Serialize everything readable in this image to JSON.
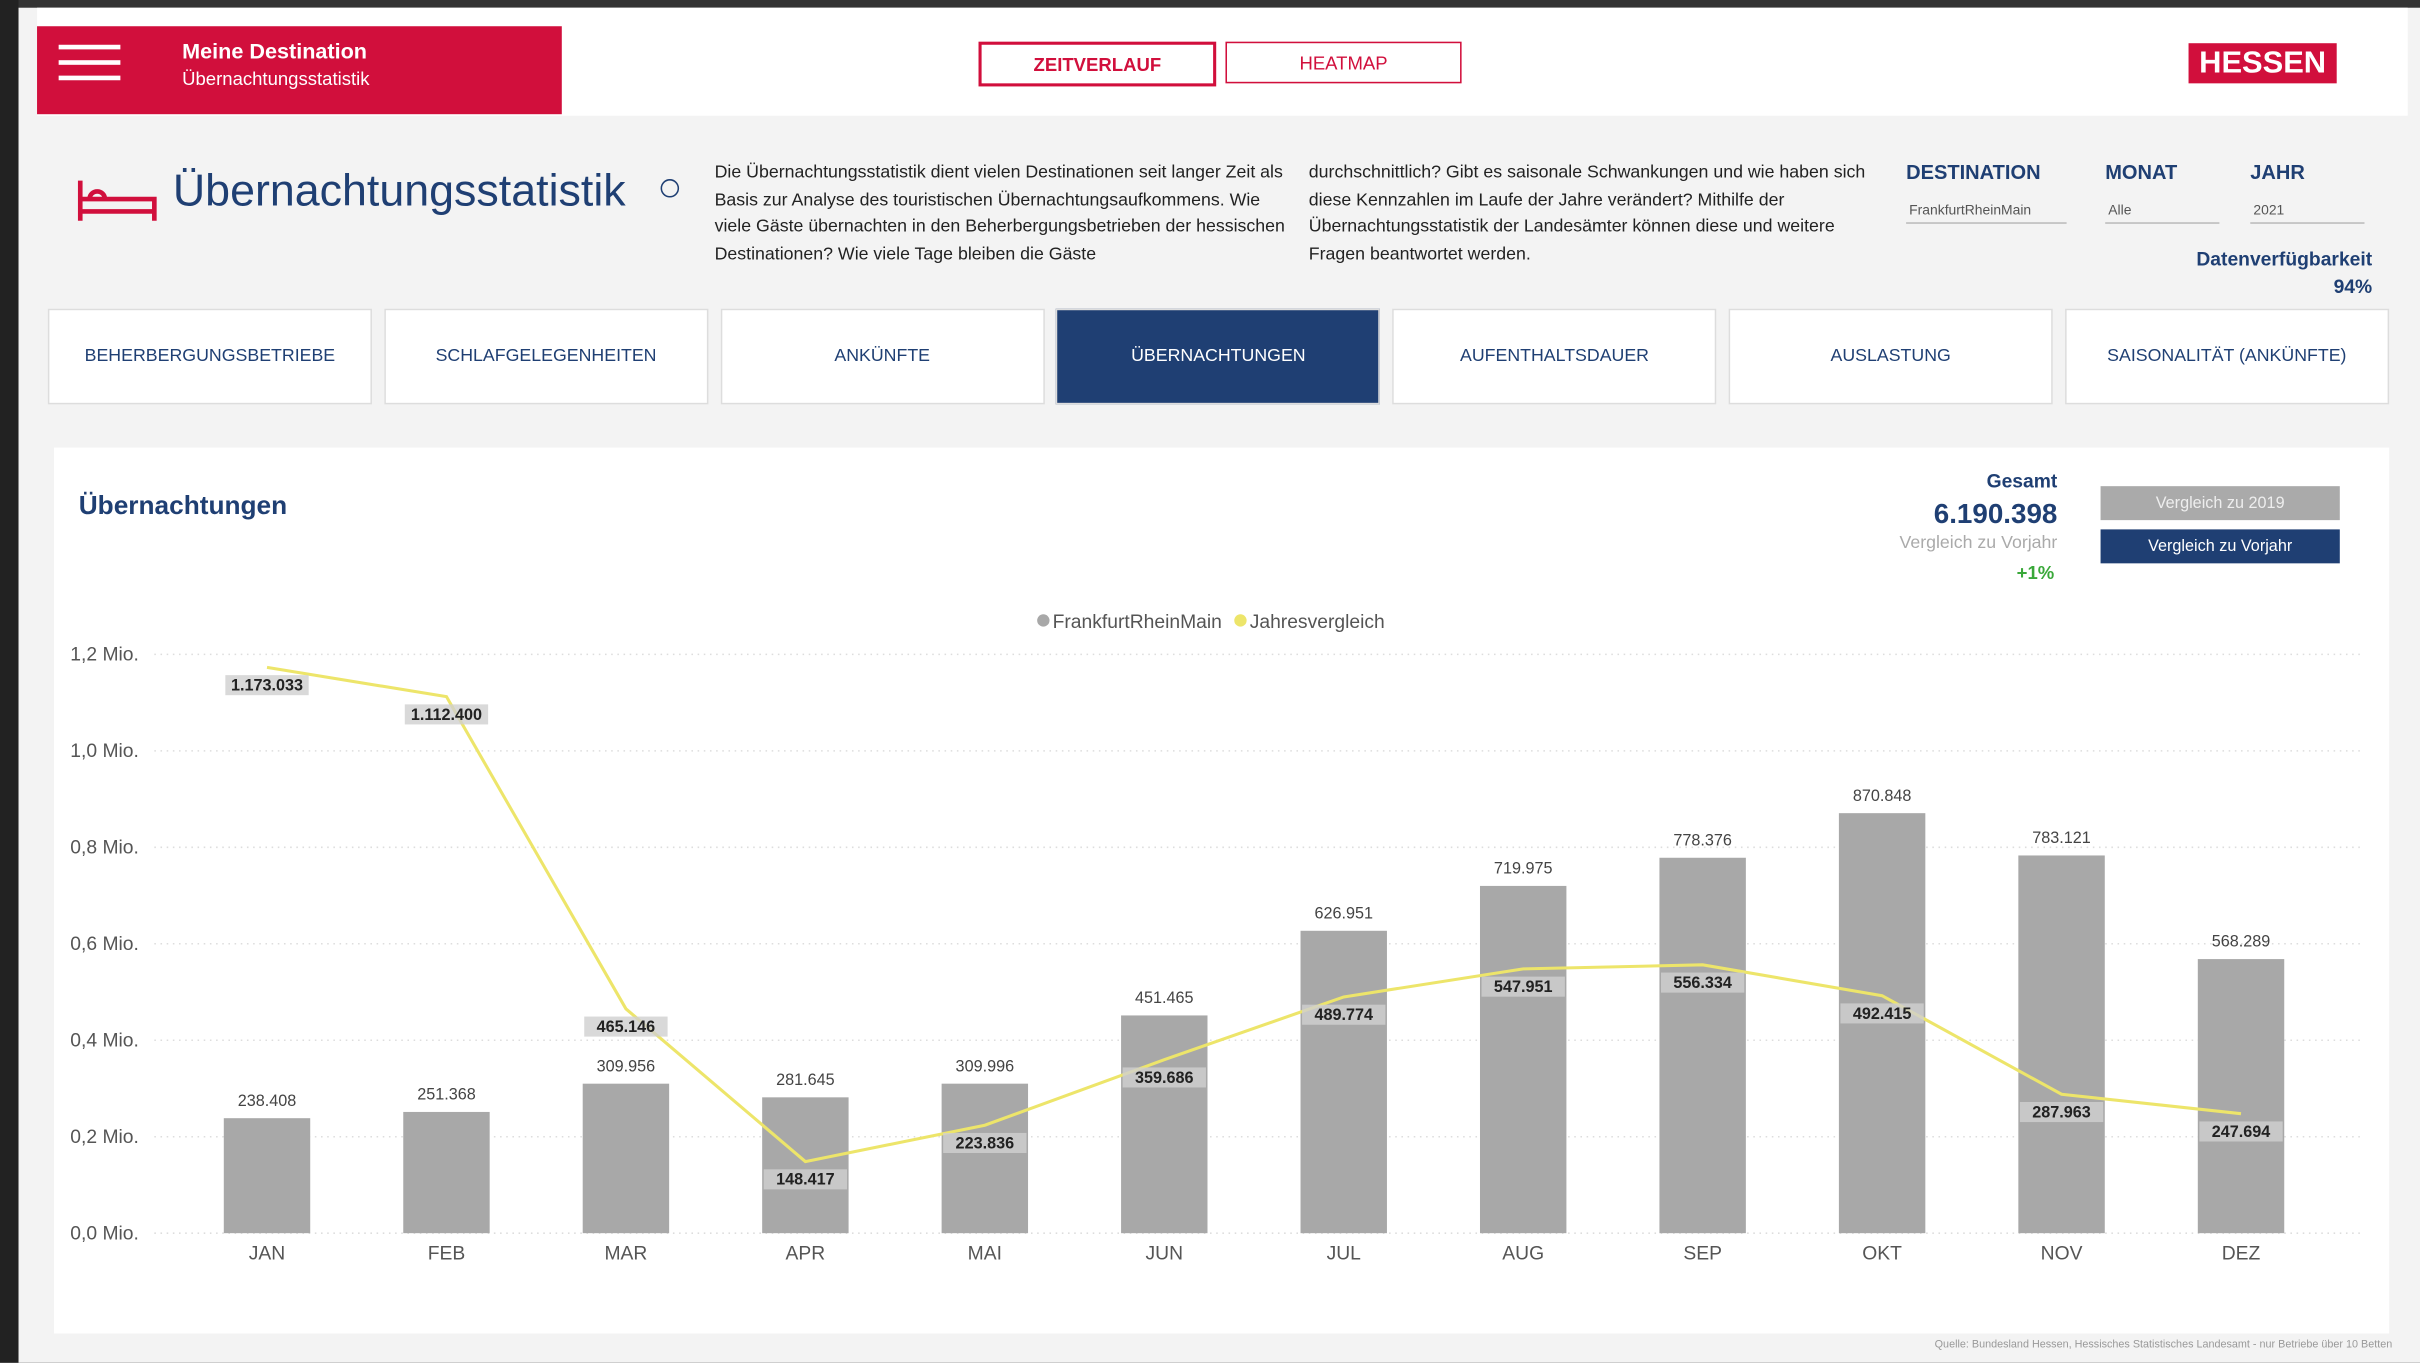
{
  "header": {
    "title": "Meine Destination",
    "subtitle": "Übernachtungsstatistik",
    "buttons": [
      "ZEITVERLAUF",
      "HEATMAP"
    ],
    "logo": "HESSEN"
  },
  "intro": {
    "title": "Übernachtungsstatistik",
    "paragraphs": [
      "Die Übernachtungsstatistik dient vielen Destinationen seit langer Zeit als Basis zur Analyse des touristischen Übernachtungsaufkommens. Wie viele Gäste übernachten in den Beherbergungsbetrieben der hessischen Destinationen? Wie viele Tage bleiben die Gäste",
      "durchschnittlich? Gibt es saisonale Schwankungen und wie haben sich diese Kennzahlen im Laufe der Jahre verändert? Mithilfe der Übernachtungsstatistik der Landesämter können diese und weitere Fragen beantwortet werden."
    ]
  },
  "filters": [
    {
      "label": "DESTINATION",
      "value": "FrankfurtRheinMain"
    },
    {
      "label": "MONAT",
      "value": "Alle"
    },
    {
      "label": "JAHR",
      "value": "2021"
    }
  ],
  "availability": {
    "label": "Datenverfügbarkeit",
    "value": "94%"
  },
  "tabs": [
    "BEHERBERGUNGSBETRIEBE",
    "SCHLAFGELEGENHEITEN",
    "ANKÜNFTE",
    "ÜBERNACHTUNGEN",
    "AUFENTHALTSDAUER",
    "AUSLASTUNG",
    "SAISONALITÄT (ANKÜNFTE)"
  ],
  "card": {
    "title": "Übernachtungen",
    "total_label": "Gesamt",
    "total": "6.190.398",
    "compare_label": "Vergleich zu Vorjahr",
    "change": "+1%",
    "buttons": [
      "Vergleich zu 2019",
      "Vergleich zu Vorjahr"
    ]
  },
  "source": "Quelle: Bundesland Hessen, Hessisches Statistisches Landesamt - nur Betriebe über 10 Betten",
  "chart_data": {
    "type": "bar",
    "categories": [
      "JAN",
      "FEB",
      "MAR",
      "APR",
      "MAI",
      "JUN",
      "JUL",
      "AUG",
      "SEP",
      "OKT",
      "NOV",
      "DEZ"
    ],
    "series": [
      {
        "name": "FrankfurtRheinMain",
        "type": "bar",
        "color": "#a8a8a8",
        "values": [
          238408,
          251368,
          309956,
          281645,
          309996,
          451465,
          626951,
          719975,
          778376,
          870848,
          783121,
          568289
        ],
        "value_labels": [
          "238.408",
          "251.368",
          "309.956",
          "281.645",
          "309.996",
          "451.465",
          "626.951",
          "719.975",
          "778.376",
          "870.848",
          "783.121",
          "568.289"
        ]
      },
      {
        "name": "Jahresvergleich",
        "type": "line",
        "color": "#ede56a",
        "values": [
          1173033,
          1112400,
          465146,
          148417,
          223836,
          359686,
          489774,
          547951,
          556334,
          492415,
          287963,
          247694
        ],
        "value_labels": [
          "1.173.033",
          "1.112.400",
          "465.146",
          "148.417",
          "223.836",
          "359.686",
          "489.774",
          "547.951",
          "556.334",
          "492.415",
          "287.963",
          "247.694"
        ]
      }
    ],
    "ylim": [
      0,
      1200000
    ],
    "yticks": [
      {
        "value": 0,
        "label": "0,0 Mio."
      },
      {
        "value": 200000,
        "label": "0,2 Mio."
      },
      {
        "value": 400000,
        "label": "0,4 Mio."
      },
      {
        "value": 600000,
        "label": "0,6 Mio."
      },
      {
        "value": 800000,
        "label": "0,8 Mio."
      },
      {
        "value": 1000000,
        "label": "1,0 Mio."
      },
      {
        "value": 1200000,
        "label": "1,2 Mio."
      }
    ],
    "grid": true,
    "legend": "top"
  }
}
